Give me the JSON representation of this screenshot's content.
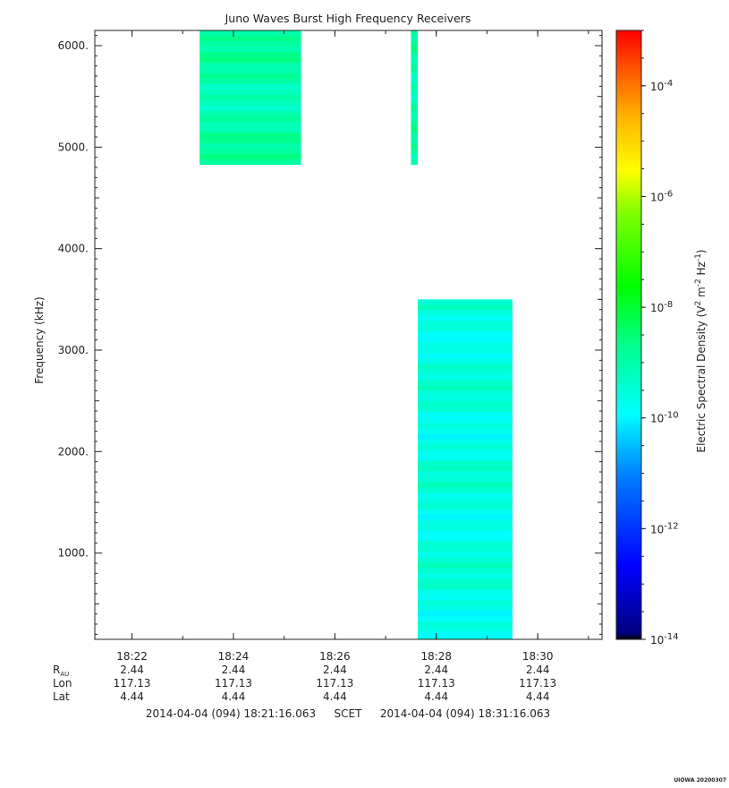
{
  "chart_data": {
    "type": "heatmap",
    "title": "Juno Waves Burst High Frequency Receivers",
    "ylabel": "Frequency (kHz)",
    "colorbar_label": "Electric Spectral Density (V² m⁻² Hz⁻¹)",
    "colorbar_label_parts": [
      "Electric Spectral Density (V",
      "2",
      " m",
      "-2",
      " Hz",
      "-1",
      ")"
    ],
    "x_time_range": [
      "18:21:16",
      "18:31:16"
    ],
    "ylim": [
      150,
      6150
    ],
    "colorbar_log_range": [
      -14,
      -3
    ],
    "x_ticks": [
      "18:22",
      "18:24",
      "18:26",
      "18:28",
      "18:30"
    ],
    "y_ticks": [
      "1000.",
      "2000.",
      "3000.",
      "4000.",
      "5000.",
      "6000."
    ],
    "colorbar_ticks": [
      {
        "base": "10",
        "exp": "-4"
      },
      {
        "base": "10",
        "exp": "-6"
      },
      {
        "base": "10",
        "exp": "-8"
      },
      {
        "base": "10",
        "exp": "-10"
      },
      {
        "base": "10",
        "exp": "-12"
      },
      {
        "base": "10",
        "exp": "-14"
      }
    ],
    "blocks": [
      {
        "t_start": "18:23:20",
        "t_end": "18:25:20",
        "f_low": 4830,
        "f_high": 6150,
        "log_density": -9.0
      },
      {
        "t_start": "18:27:30",
        "t_end": "18:27:38",
        "f_low": 4830,
        "f_high": 6150,
        "log_density": -9.0
      },
      {
        "t_start": "18:27:38",
        "t_end": "18:29:30",
        "f_low": 150,
        "f_high": 3500,
        "log_density": -9.6
      }
    ],
    "ephemeris": {
      "row_labels": [
        {
          "main": "R",
          "sub": "AU"
        },
        {
          "main": "Lon",
          "sub": ""
        },
        {
          "main": "Lat",
          "sub": ""
        }
      ],
      "rows": [
        [
          "2.44",
          "2.44",
          "2.44",
          "2.44",
          "2.44"
        ],
        [
          "117.13",
          "117.13",
          "117.13",
          "117.13",
          "117.13"
        ],
        [
          "4.44",
          "4.44",
          "4.44",
          "4.44",
          "4.44"
        ]
      ]
    },
    "time_range_text": {
      "start": "2014-04-04 (094) 18:21:16.063",
      "frame": "SCET",
      "end": "2014-04-04 (094) 18:31:16.063"
    }
  },
  "stamp": "UIOWA 20200307"
}
